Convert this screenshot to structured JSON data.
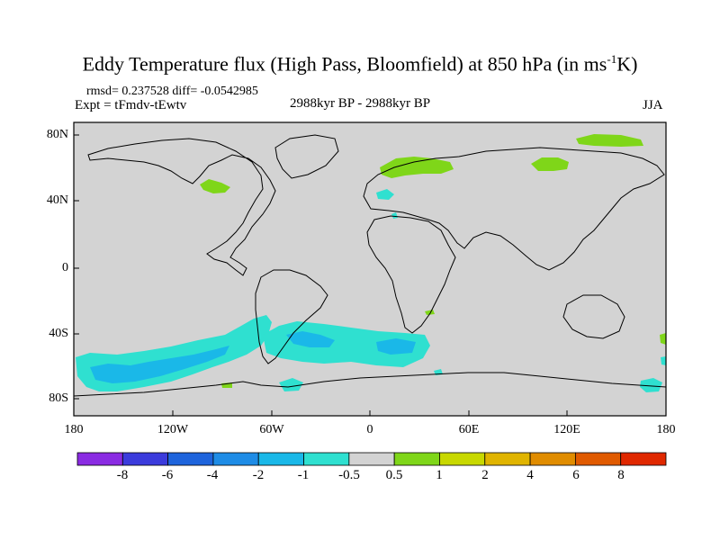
{
  "title": {
    "main": "Eddy Temperature flux (High Pass, Bloomfield) at 850 hPa (in ms",
    "sup": "-1",
    "tail": "K)"
  },
  "stats": "rmsd= 0.237528 diff= -0.0542985",
  "expt": "Expt = tFmdv-tEwtv",
  "period": "2988kyr BP - 2988kyr BP",
  "season": "JJA",
  "map": {
    "projection": "cylindrical equidistant",
    "lon_range": [
      -180,
      180
    ],
    "lat_range": [
      -90,
      90
    ],
    "background_color": "#d3d3d3",
    "y_tick_labels": [
      "80N",
      "40N",
      "0",
      "40S",
      "80S"
    ],
    "x_tick_labels": [
      "180",
      "120W",
      "60W",
      "0",
      "60E",
      "120E",
      "180"
    ],
    "regions": [
      {
        "category": "0.5 to 1",
        "color": "#7fd619",
        "where": "Greenland Sea / Arctic"
      },
      {
        "category": "0.5 to 1",
        "color": "#7fd619",
        "where": "Scandinavia"
      },
      {
        "category": "0.5 to 1",
        "color": "#7fd619",
        "where": "Central Siberia"
      },
      {
        "category": "0.5 to 1",
        "color": "#7fd619",
        "where": "Hudson Bay"
      },
      {
        "category": "-1 to -0.5",
        "color": "#2fe0d0",
        "where": "Southern Ocean Pacific sector"
      },
      {
        "category": "-1 to -0.5",
        "color": "#2fe0d0",
        "where": "South Atlantic"
      },
      {
        "category": "-2 to -1",
        "color": "#1ab8e8",
        "where": "Southern Ocean core"
      }
    ]
  },
  "colorbar": {
    "colors": [
      "#8a2be2",
      "#3b3bdc",
      "#1e64dc",
      "#1e8ce6",
      "#1ab8e8",
      "#2fe0d0",
      "#d3d3d3",
      "#7fd619",
      "#c8d800",
      "#e0b400",
      "#e08c00",
      "#e05a00",
      "#e02800"
    ],
    "labels": [
      "-8",
      "-6",
      "-4",
      "-2",
      "-1",
      "-0.5",
      "0.5",
      "1",
      "2",
      "4",
      "6",
      "8"
    ]
  }
}
